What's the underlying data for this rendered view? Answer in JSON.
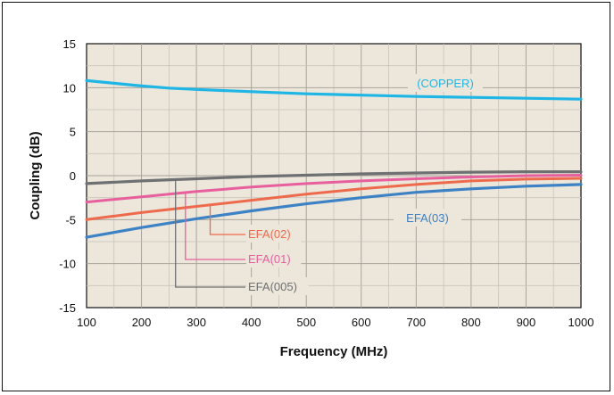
{
  "chart_data": {
    "type": "line",
    "xlabel": "Frequency (MHz)",
    "ylabel": "Coupling (dB)",
    "xlim": [
      100,
      1000
    ],
    "ylim": [
      -15,
      15
    ],
    "x_ticks": [
      "100",
      "200",
      "300",
      "400",
      "500",
      "600",
      "700",
      "800",
      "900",
      "1000"
    ],
    "y_ticks": [
      "15",
      "10",
      "5",
      "0",
      "-5",
      "-10",
      "-15"
    ],
    "grid": true,
    "background": "#ece6db",
    "series": [
      {
        "name": "(COPPER)",
        "color": "#1fb6e6",
        "x": [
          100,
          150,
          200,
          250,
          300,
          400,
          500,
          600,
          700,
          800,
          900,
          1000
        ],
        "y": [
          10.8,
          10.5,
          10.2,
          9.95,
          9.8,
          9.55,
          9.3,
          9.15,
          9.0,
          8.9,
          8.8,
          8.7
        ]
      },
      {
        "name": "EFA(005)",
        "color": "#6e7072",
        "x": [
          100,
          200,
          300,
          400,
          500,
          600,
          700,
          800,
          900,
          1000
        ],
        "y": [
          -0.9,
          -0.6,
          -0.35,
          -0.1,
          0.05,
          0.2,
          0.3,
          0.4,
          0.45,
          0.45
        ]
      },
      {
        "name": "EFA(01)",
        "color": "#e7609d",
        "x": [
          100,
          200,
          300,
          400,
          500,
          600,
          700,
          800,
          900,
          1000
        ],
        "y": [
          -3.0,
          -2.4,
          -1.8,
          -1.3,
          -0.9,
          -0.6,
          -0.35,
          -0.15,
          0.0,
          0.05
        ]
      },
      {
        "name": "EFA(02)",
        "color": "#ee6a4c",
        "x": [
          100,
          200,
          300,
          400,
          500,
          600,
          700,
          800,
          900,
          1000
        ],
        "y": [
          -5.0,
          -4.2,
          -3.5,
          -2.8,
          -2.1,
          -1.5,
          -1.0,
          -0.6,
          -0.4,
          -0.3
        ]
      },
      {
        "name": "EFA(03)",
        "color": "#3d82c4",
        "x": [
          100,
          200,
          300,
          400,
          500,
          600,
          700,
          800,
          900,
          1000
        ],
        "y": [
          -7.0,
          -5.9,
          -4.9,
          -4.0,
          -3.2,
          -2.5,
          -1.9,
          -1.5,
          -1.2,
          -1.0
        ]
      }
    ]
  }
}
